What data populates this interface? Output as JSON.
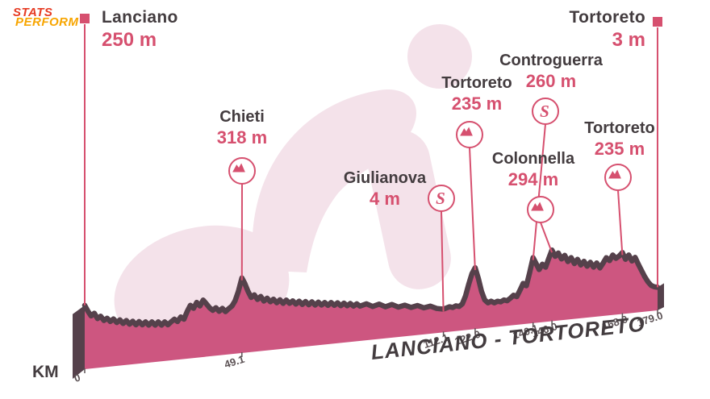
{
  "logo": {
    "line1": "STATS",
    "line2": "PERFORM"
  },
  "axis_label": "KM",
  "title": "LANCIANO - TORTORETO",
  "start": {
    "name": "Lanciano",
    "elevation": "250 m",
    "km": 0
  },
  "finish": {
    "name": "Tortoreto",
    "elevation": "3 m",
    "km": 179
  },
  "waypoints": [
    {
      "name": "Chieti",
      "elevation": "318 m",
      "km": 49.1,
      "icon": "mountain"
    },
    {
      "name": "Giulianova",
      "elevation": "4 m",
      "km": 112.1,
      "icon": "sprint"
    },
    {
      "name": "Tortoreto",
      "elevation": "235 m",
      "km": 122,
      "icon": "mountain"
    },
    {
      "name": "Controguerra",
      "elevation": "260 m",
      "km": 140.1,
      "icon": "sprint"
    },
    {
      "name": "Colonnella",
      "elevation": "294 m",
      "km": 146,
      "icon": "mountain"
    },
    {
      "name": "Tortoreto",
      "elevation": "235 m",
      "km": 168,
      "icon": "mountain"
    }
  ],
  "icons": {
    "sprint_letter": "S"
  },
  "km_ticks": [
    "0",
    "49.1",
    "112.1",
    "122.0",
    "140.1",
    "146.0",
    "168.0",
    "179.0"
  ],
  "colors": {
    "profile_fill": "#cd5680",
    "profile_crest": "#55414b",
    "marker_pink": "#d6506f",
    "text_dark": "#433c3f",
    "tick_text": "#5c5255",
    "watermark_pink": "#f4e2ea",
    "logo_red": "#e63b23",
    "logo_orange": "#f7a500"
  },
  "chart_data": {
    "type": "area",
    "title": "LANCIANO - TORTORETO",
    "xlabel": "KM",
    "xlim": [
      0,
      179
    ],
    "ylim_m": [
      0,
      320
    ],
    "x_ticks_km": [
      0,
      49.1,
      112.1,
      122.0,
      140.1,
      146.0,
      168.0,
      179.0
    ],
    "series": [
      {
        "name": "elevation profile",
        "points": [
          [
            0,
            250
          ],
          [
            1,
            212
          ],
          [
            2,
            182
          ],
          [
            3,
            196
          ],
          [
            4,
            162
          ],
          [
            5,
            174
          ],
          [
            6,
            146
          ],
          [
            7,
            158
          ],
          [
            8,
            136
          ],
          [
            9,
            150
          ],
          [
            10,
            126
          ],
          [
            11,
            140
          ],
          [
            12,
            116
          ],
          [
            13,
            132
          ],
          [
            14,
            108
          ],
          [
            15,
            124
          ],
          [
            16,
            100
          ],
          [
            17,
            118
          ],
          [
            18,
            96
          ],
          [
            19,
            112
          ],
          [
            20,
            90
          ],
          [
            21,
            108
          ],
          [
            22,
            86
          ],
          [
            23,
            104
          ],
          [
            24,
            82
          ],
          [
            25,
            100
          ],
          [
            26,
            80
          ],
          [
            27,
            96
          ],
          [
            28,
            110
          ],
          [
            29,
            94
          ],
          [
            30,
            120
          ],
          [
            31,
            104
          ],
          [
            32,
            148
          ],
          [
            33,
            184
          ],
          [
            34,
            164
          ],
          [
            35,
            198
          ],
          [
            36,
            174
          ],
          [
            37,
            208
          ],
          [
            38,
            184
          ],
          [
            39,
            158
          ],
          [
            40,
            140
          ],
          [
            41,
            154
          ],
          [
            42,
            130
          ],
          [
            43,
            146
          ],
          [
            44,
            124
          ],
          [
            45,
            140
          ],
          [
            46,
            154
          ],
          [
            47,
            184
          ],
          [
            48,
            238
          ],
          [
            49.1,
            318
          ],
          [
            50,
            284
          ],
          [
            51,
            234
          ],
          [
            52,
            194
          ],
          [
            53,
            208
          ],
          [
            54,
            178
          ],
          [
            55,
            194
          ],
          [
            56,
            164
          ],
          [
            57,
            180
          ],
          [
            58,
            156
          ],
          [
            59,
            170
          ],
          [
            60,
            146
          ],
          [
            61,
            162
          ],
          [
            62,
            138
          ],
          [
            63,
            156
          ],
          [
            64,
            134
          ],
          [
            65,
            148
          ],
          [
            66,
            126
          ],
          [
            67,
            142
          ],
          [
            68,
            120
          ],
          [
            69,
            136
          ],
          [
            70,
            114
          ],
          [
            71,
            130
          ],
          [
            72,
            108
          ],
          [
            73,
            124
          ],
          [
            74,
            104
          ],
          [
            75,
            118
          ],
          [
            76,
            98
          ],
          [
            77,
            114
          ],
          [
            78,
            94
          ],
          [
            79,
            108
          ],
          [
            80,
            88
          ],
          [
            81,
            102
          ],
          [
            82,
            84
          ],
          [
            83,
            96
          ],
          [
            84,
            78
          ],
          [
            85,
            90
          ],
          [
            86,
            74
          ],
          [
            88,
            84
          ],
          [
            90,
            64
          ],
          [
            92,
            74
          ],
          [
            94,
            54
          ],
          [
            96,
            64
          ],
          [
            98,
            44
          ],
          [
            100,
            52
          ],
          [
            102,
            34
          ],
          [
            104,
            42
          ],
          [
            106,
            24
          ],
          [
            108,
            30
          ],
          [
            110,
            12
          ],
          [
            112.1,
            4
          ],
          [
            113,
            9
          ],
          [
            114,
            14
          ],
          [
            115,
            8
          ],
          [
            116,
            16
          ],
          [
            117,
            10
          ],
          [
            118,
            24
          ],
          [
            119,
            70
          ],
          [
            120,
            140
          ],
          [
            121,
            200
          ],
          [
            122,
            235
          ],
          [
            123,
            168
          ],
          [
            124,
            88
          ],
          [
            125,
            34
          ],
          [
            126,
            14
          ],
          [
            127,
            22
          ],
          [
            128,
            10
          ],
          [
            129,
            18
          ],
          [
            130,
            12
          ],
          [
            131,
            22
          ],
          [
            132,
            15
          ],
          [
            133,
            28
          ],
          [
            134,
            44
          ],
          [
            135,
            34
          ],
          [
            136,
            70
          ],
          [
            137,
            110
          ],
          [
            138,
            94
          ],
          [
            139,
            168
          ],
          [
            140.1,
            260
          ],
          [
            141,
            224
          ],
          [
            142,
            184
          ],
          [
            143,
            214
          ],
          [
            144,
            194
          ],
          [
            145,
            244
          ],
          [
            146,
            294
          ],
          [
            147,
            254
          ],
          [
            148,
            272
          ],
          [
            149,
            234
          ],
          [
            150,
            254
          ],
          [
            151,
            214
          ],
          [
            152,
            236
          ],
          [
            153,
            198
          ],
          [
            154,
            222
          ],
          [
            155,
            186
          ],
          [
            156,
            206
          ],
          [
            157,
            174
          ],
          [
            158,
            196
          ],
          [
            159,
            164
          ],
          [
            160,
            188
          ],
          [
            161,
            156
          ],
          [
            162,
            184
          ],
          [
            163,
            214
          ],
          [
            164,
            194
          ],
          [
            165,
            226
          ],
          [
            166,
            204
          ],
          [
            167,
            216
          ],
          [
            168,
            235
          ],
          [
            169,
            192
          ],
          [
            170,
            216
          ],
          [
            171,
            178
          ],
          [
            172,
            198
          ],
          [
            173,
            154
          ],
          [
            174,
            114
          ],
          [
            175,
            75
          ],
          [
            176,
            42
          ],
          [
            177,
            18
          ],
          [
            178,
            8
          ],
          [
            179,
            3
          ]
        ]
      }
    ]
  }
}
